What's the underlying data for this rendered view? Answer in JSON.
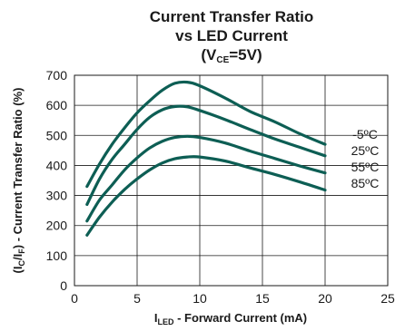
{
  "chart_data": {
    "type": "line",
    "title_lines": [
      "Current Transfer Ratio",
      "vs LED Current"
    ],
    "title_cond": {
      "open": "(V",
      "sub": "CE",
      "close": "=5V)"
    },
    "xlabel": {
      "main": "I",
      "sub": "LED",
      "rest": " - Forward Current (mA)"
    },
    "ylabel": {
      "p1": "(I",
      "s1": "C",
      "p2": "/I",
      "s2": "F",
      "p3": ") - Current Transfer Ratio (%)"
    },
    "xlim": [
      0,
      25
    ],
    "ylim": [
      0,
      700
    ],
    "xticks": [
      "0",
      "5",
      "10",
      "15",
      "20",
      "25"
    ],
    "yticks": [
      "0",
      "100",
      "200",
      "300",
      "400",
      "500",
      "600",
      "700"
    ],
    "grid": true,
    "line_color": "#0d5e54",
    "series": [
      {
        "name": "-5ºC",
        "x": [
          1,
          2,
          3,
          4,
          5,
          6,
          7,
          8,
          9,
          10,
          12,
          14,
          16,
          18,
          20
        ],
        "y": [
          330,
          405,
          470,
          525,
          575,
          615,
          650,
          673,
          677,
          665,
          625,
          580,
          545,
          505,
          470
        ]
      },
      {
        "name": "25ºC",
        "x": [
          1,
          2,
          3,
          4,
          5,
          6,
          7,
          8,
          9,
          10,
          12,
          14,
          16,
          18,
          20
        ],
        "y": [
          270,
          355,
          420,
          470,
          520,
          560,
          585,
          596,
          595,
          583,
          553,
          520,
          488,
          460,
          432
        ]
      },
      {
        "name": "55ºC",
        "x": [
          1,
          2,
          3,
          4,
          5,
          6,
          7,
          8,
          9,
          10,
          12,
          14,
          16,
          18,
          20
        ],
        "y": [
          215,
          285,
          335,
          385,
          425,
          458,
          480,
          493,
          497,
          493,
          475,
          448,
          423,
          398,
          375
        ]
      },
      {
        "name": "85ºC",
        "x": [
          1,
          2,
          3,
          4,
          5,
          6,
          7,
          8,
          9,
          10,
          12,
          14,
          16,
          18,
          20
        ],
        "y": [
          168,
          228,
          278,
          320,
          355,
          385,
          408,
          422,
          428,
          428,
          415,
          392,
          370,
          345,
          318
        ]
      }
    ]
  }
}
